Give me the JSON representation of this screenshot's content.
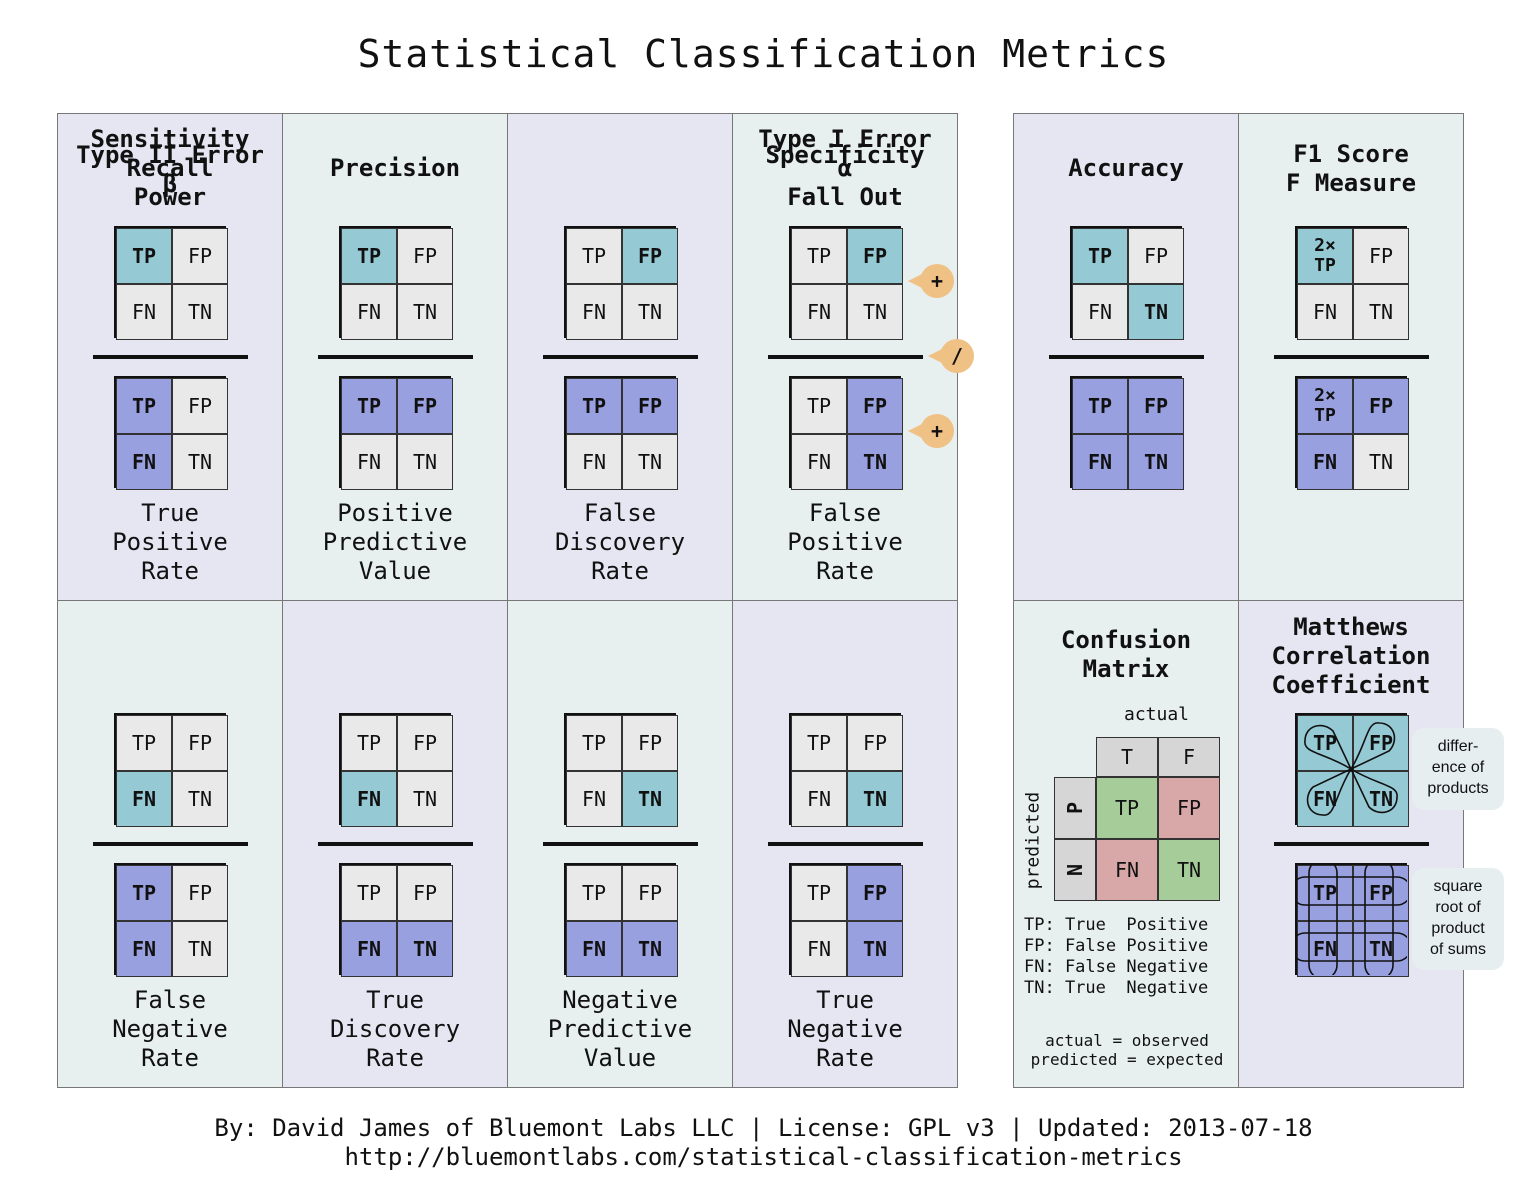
{
  "title": "Statistical Classification Metrics",
  "footer": {
    "line1": "By: David James of Bluemont Labs LLC | License: GPL v3 | Updated: 2013-07-18",
    "line2": "http://bluemontlabs.com/statistical-classification-metrics"
  },
  "labels": {
    "TP": "TP",
    "FP": "FP",
    "FN": "FN",
    "TN": "TN",
    "two_tp": "2×\nTP"
  },
  "operators": {
    "plus": "+",
    "divide": "/"
  },
  "metrics": [
    {
      "title": "Sensitivity\nRecall\nPower",
      "name": "True\nPositive\nRate"
    },
    {
      "title": "Precision",
      "name": "Positive\nPredictive\nValue"
    },
    {
      "title": "",
      "name": "False\nDiscovery\nRate"
    },
    {
      "title": "Type I Error\nα\nFall Out",
      "name": "False\nPositive\nRate"
    },
    {
      "title": "Type II Error\nβ",
      "name": "False\nNegative\nRate"
    },
    {
      "title": "",
      "name": "True\nDiscovery\nRate"
    },
    {
      "title": "",
      "name": "Negative\nPredictive\nValue"
    },
    {
      "title": "Specificity",
      "name": "True\nNegative\nRate"
    },
    {
      "title": "Accuracy",
      "name": ""
    },
    {
      "title": "F1 Score\nF Measure",
      "name": ""
    }
  ],
  "confusion": {
    "title": "Confusion\nMatrix",
    "actual": "actual",
    "predicted": "predicted",
    "T": "T",
    "F": "F",
    "P": "P",
    "N": "N",
    "legend": "TP: True  Positive\nFP: False Positive\nFN: False Negative\nTN: True  Negative",
    "note": "actual = observed\npredicted = expected"
  },
  "mcc": {
    "title": "Matthews\nCorrelation\nCoefficient",
    "note_top": "differ-\nence of\nproducts",
    "note_bottom": "square\nroot of\nproduct\nof sums"
  },
  "colors": {
    "highlight": "#95cad5",
    "purple": "#99a0e0",
    "grey": "#e9e9e9",
    "bubble": "#efc184",
    "cm_green": "#a6cc9a",
    "cm_red": "#d8a8a8"
  }
}
